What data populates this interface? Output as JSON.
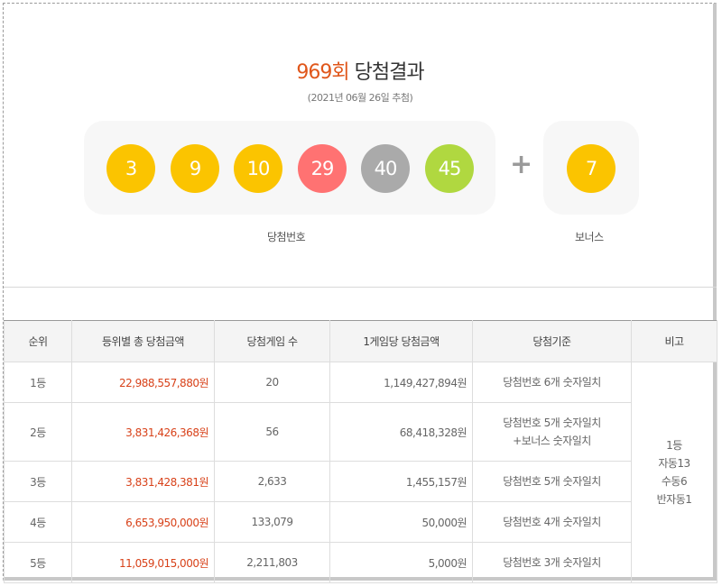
{
  "header": {
    "episode": "969회",
    "title": "당첨결과",
    "draw_date": "(2021년 06월 26일 추첨)"
  },
  "winning_numbers": [
    {
      "number": "3",
      "color": "#fbc400"
    },
    {
      "number": "9",
      "color": "#fbc400"
    },
    {
      "number": "10",
      "color": "#fbc400"
    },
    {
      "number": "29",
      "color": "#ff7272"
    },
    {
      "number": "40",
      "color": "#aaaaaa"
    },
    {
      "number": "45",
      "color": "#b0d840"
    }
  ],
  "bonus_number": {
    "number": "7",
    "color": "#fbc400"
  },
  "plus_symbol": "+",
  "labels": {
    "winning": "당첨번호",
    "bonus": "보너스"
  },
  "table": {
    "headers": [
      "순위",
      "등위별 총 당첨금액",
      "당첨게임 수",
      "1게임당 당첨금액",
      "당첨기준",
      "비고"
    ],
    "rows": [
      {
        "rank": "1등",
        "total": "22,988,557,880원",
        "count": "20",
        "per_game": "1,149,427,894원",
        "criteria": [
          "당첨번호 6개 숫자일치"
        ]
      },
      {
        "rank": "2등",
        "total": "3,831,426,368원",
        "count": "56",
        "per_game": "68,418,328원",
        "criteria": [
          "당첨번호 5개 숫자일치",
          "+보너스 숫자일치"
        ]
      },
      {
        "rank": "3등",
        "total": "3,831,428,381원",
        "count": "2,633",
        "per_game": "1,455,157원",
        "criteria": [
          "당첨번호 5개 숫자일치"
        ]
      },
      {
        "rank": "4등",
        "total": "6,653,950,000원",
        "count": "133,079",
        "per_game": "50,000원",
        "criteria": [
          "당첨번호 4개 숫자일치"
        ]
      },
      {
        "rank": "5등",
        "total": "11,059,015,000원",
        "count": "2,211,803",
        "per_game": "5,000원",
        "criteria": [
          "당첨번호 3개 숫자일치"
        ]
      }
    ],
    "note": [
      "1등",
      "자동13",
      "수동6",
      "반자동1"
    ]
  },
  "colors": {
    "accent": "#e0571b",
    "amount_red": "#d8421a"
  }
}
